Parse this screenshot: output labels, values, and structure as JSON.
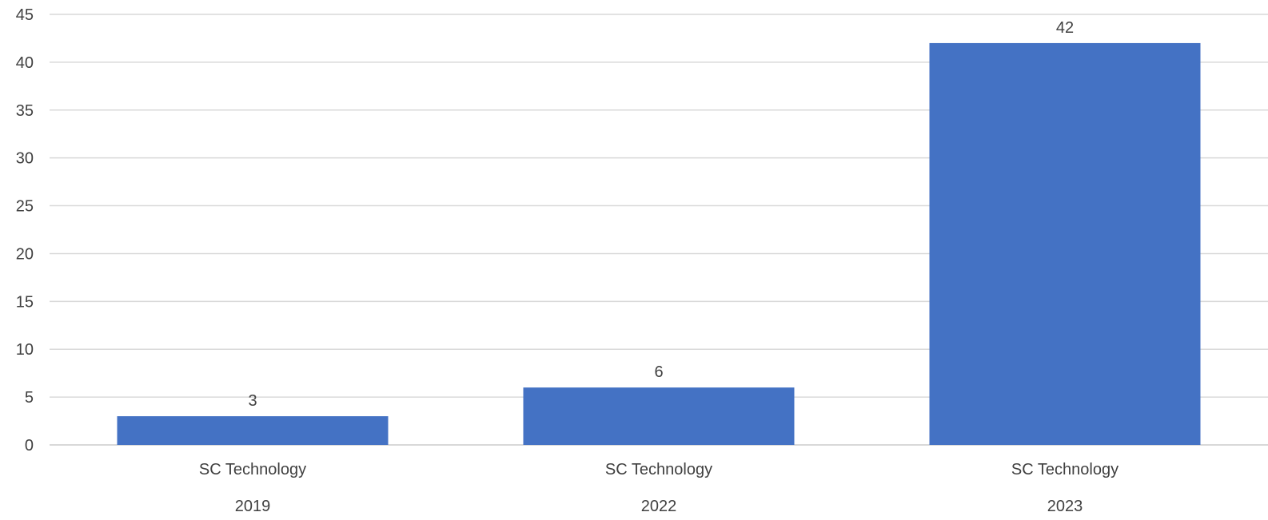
{
  "chart_data": {
    "type": "bar",
    "categories": [
      {
        "label": "SC Technology",
        "group": "2019"
      },
      {
        "label": "SC Technology",
        "group": "2022"
      },
      {
        "label": "SC Technology",
        "group": "2023"
      }
    ],
    "series": [
      {
        "values": [
          3,
          6,
          42
        ],
        "color": "#4472C4"
      }
    ],
    "data_labels": [
      "3",
      "6",
      "42"
    ],
    "y_ticks": [
      "0",
      "5",
      "10",
      "15",
      "20",
      "25",
      "30",
      "35",
      "40",
      "45"
    ],
    "ylim": [
      0,
      45
    ],
    "grid": true,
    "legend": "none",
    "title": "",
    "xlabel": "",
    "ylabel": ""
  }
}
